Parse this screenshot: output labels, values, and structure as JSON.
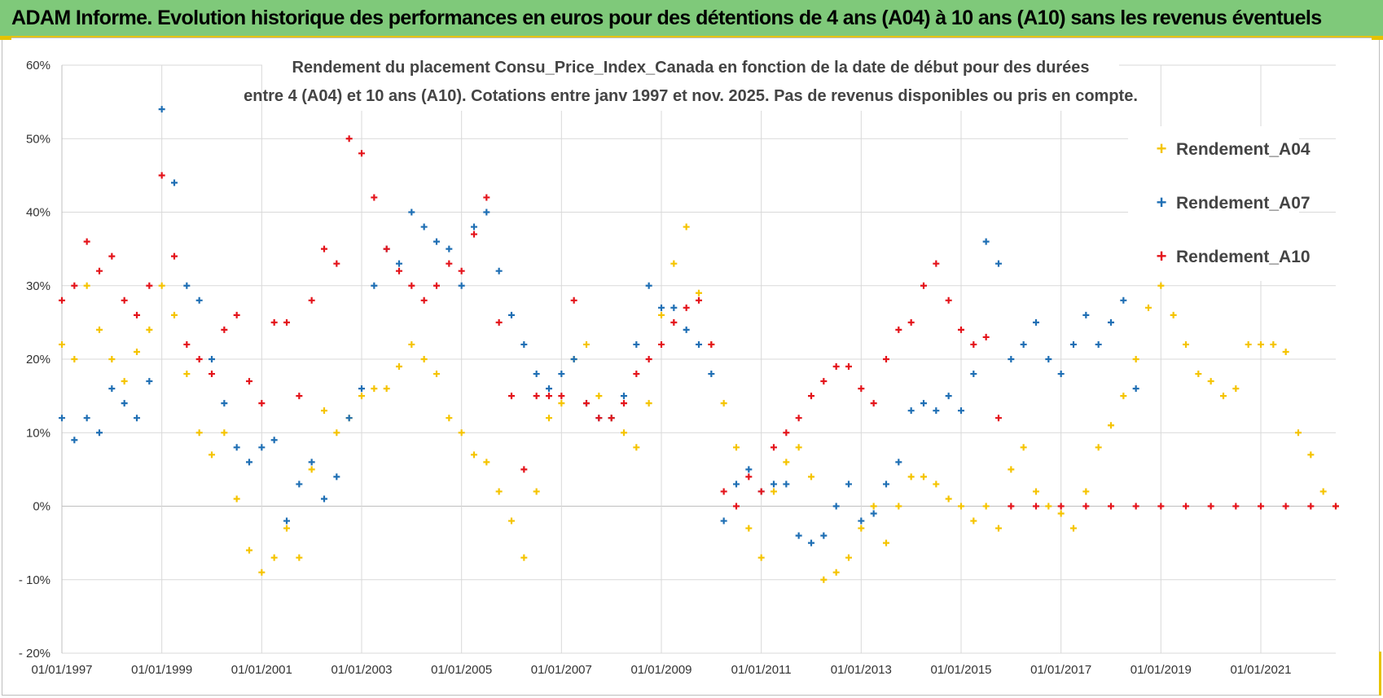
{
  "header": {
    "title": "ADAM Informe. Evolution historique des performances en euros pour des détentions de 4 ans (A04) à 10 ans (A10) sans les revenus éventuels"
  },
  "colors": {
    "header_bg": "#7fc97a",
    "accent": "#e6c200",
    "a04": "#f5c400",
    "a07": "#1f6fb4",
    "a10": "#e4141b"
  },
  "chart_data": {
    "type": "scatter",
    "title_lines": [
      "Rendement du placement Consu_Price_Index_Canada en fonction de la date de début pour des durées",
      "entre 4 (A04) et 10 ans (A10).  Cotations entre janv 1997 et nov. 2025. Pas de revenus disponibles ou pris en compte."
    ],
    "xlabel": "",
    "ylabel": "",
    "xlim": [
      1997.0,
      2022.5
    ],
    "ylim": [
      -20,
      60
    ],
    "y_ticks": [
      60,
      50,
      40,
      30,
      20,
      10,
      0,
      -10,
      -20
    ],
    "y_tick_labels": [
      "60%",
      "50%",
      "40%",
      "30%",
      "20%",
      "10%",
      "0%",
      "- 10%",
      "- 20%"
    ],
    "x_ticks": [
      1997,
      1999,
      2001,
      2003,
      2005,
      2007,
      2009,
      2011,
      2013,
      2015,
      2017,
      2019,
      2021
    ],
    "x_tick_labels": [
      "01/01/1997",
      "01/01/1999",
      "01/01/2001",
      "01/01/2003",
      "01/01/2005",
      "01/01/2007",
      "01/01/2009",
      "01/01/2011",
      "01/01/2013",
      "01/01/2015",
      "01/01/2017",
      "01/01/2019",
      "01/01/2021"
    ],
    "legend_position": "right",
    "series": [
      {
        "name": "Rendement_A04",
        "color": "#f5c400",
        "x": [
          1997.0,
          1997.25,
          1997.5,
          1997.75,
          1998.0,
          1998.25,
          1998.5,
          1998.75,
          1999.0,
          1999.25,
          1999.5,
          1999.75,
          2000.0,
          2000.25,
          2000.5,
          2000.75,
          2001.0,
          2001.25,
          2001.5,
          2001.75,
          2002.0,
          2002.25,
          2002.5,
          2002.75,
          2003.0,
          2003.25,
          2003.5,
          2003.75,
          2004.0,
          2004.25,
          2004.5,
          2004.75,
          2005.0,
          2005.25,
          2005.5,
          2005.75,
          2006.0,
          2006.25,
          2006.5,
          2006.75,
          2007.0,
          2007.25,
          2007.5,
          2007.75,
          2008.0,
          2008.25,
          2008.5,
          2008.75,
          2009.0,
          2009.25,
          2009.5,
          2009.75,
          2010.0,
          2010.25,
          2010.5,
          2010.75,
          2011.0,
          2011.25,
          2011.5,
          2011.75,
          2012.0,
          2012.25,
          2012.5,
          2012.75,
          2013.0,
          2013.25,
          2013.5,
          2013.75,
          2014.0,
          2014.25,
          2014.5,
          2014.75,
          2015.0,
          2015.25,
          2015.5,
          2015.75,
          2016.0,
          2016.25,
          2016.5,
          2016.75,
          2017.0,
          2017.25,
          2017.5,
          2017.75,
          2018.0,
          2018.25,
          2018.5,
          2018.75,
          2019.0,
          2019.25,
          2019.5,
          2019.75,
          2020.0,
          2020.25,
          2020.5,
          2020.75,
          2021.0,
          2021.25,
          2021.5,
          2021.75,
          2022.0,
          2022.25,
          2022.5
        ],
        "y": [
          22,
          20,
          30,
          24,
          20,
          17,
          21,
          24,
          30,
          26,
          18,
          10,
          7,
          10,
          1,
          -6,
          -9,
          -7,
          -3,
          -7,
          5,
          13,
          10,
          12,
          15,
          16,
          16,
          19,
          22,
          20,
          18,
          12,
          10,
          7,
          6,
          2,
          -2,
          -7,
          2,
          12,
          14,
          20,
          22,
          15,
          12,
          10,
          8,
          14,
          26,
          33,
          38,
          29,
          22,
          14,
          8,
          -3,
          -7,
          2,
          6,
          8,
          4,
          -10,
          -9,
          -7,
          -3,
          0,
          -5,
          0,
          4,
          4,
          3,
          1,
          0,
          -2,
          0,
          -3,
          5,
          8,
          2,
          0,
          -1,
          -3,
          2,
          8,
          11,
          15,
          20,
          27,
          30,
          26,
          22,
          18,
          17,
          15,
          16,
          22,
          22,
          22,
          21,
          10,
          7,
          2,
          0
        ]
      },
      {
        "name": "Rendement_A07",
        "color": "#1f6fb4",
        "x": [
          1997.0,
          1997.25,
          1997.5,
          1997.75,
          1998.0,
          1998.25,
          1998.5,
          1998.75,
          1999.0,
          1999.25,
          1999.5,
          1999.75,
          2000.0,
          2000.25,
          2000.5,
          2000.75,
          2001.0,
          2001.25,
          2001.5,
          2001.75,
          2002.0,
          2002.25,
          2002.5,
          2002.75,
          2003.0,
          2003.25,
          2003.5,
          2003.75,
          2004.0,
          2004.25,
          2004.5,
          2004.75,
          2005.0,
          2005.25,
          2005.5,
          2005.75,
          2006.0,
          2006.25,
          2006.5,
          2006.75,
          2007.0,
          2007.25,
          2007.5,
          2007.75,
          2008.0,
          2008.25,
          2008.5,
          2008.75,
          2009.0,
          2009.25,
          2009.5,
          2009.75,
          2010.0,
          2010.25,
          2010.5,
          2010.75,
          2011.0,
          2011.25,
          2011.5,
          2011.75,
          2012.0,
          2012.25,
          2012.5,
          2012.75,
          2013.0,
          2013.25,
          2013.5,
          2013.75,
          2014.0,
          2014.25,
          2014.5,
          2014.75,
          2015.0,
          2015.25,
          2015.5,
          2015.75,
          2016.0,
          2016.25,
          2016.5,
          2016.75,
          2017.0,
          2017.25,
          2017.5,
          2017.75,
          2018.0,
          2018.25,
          2018.5
        ],
        "y": [
          12,
          9,
          12,
          10,
          16,
          14,
          12,
          17,
          54,
          44,
          30,
          28,
          20,
          14,
          8,
          6,
          8,
          9,
          -2,
          3,
          6,
          1,
          4,
          12,
          16,
          30,
          35,
          33,
          40,
          38,
          36,
          35,
          30,
          38,
          40,
          32,
          26,
          22,
          18,
          16,
          18,
          20,
          14,
          12,
          12,
          15,
          22,
          30,
          27,
          27,
          24,
          22,
          18,
          -2,
          3,
          5,
          2,
          3,
          3,
          -4,
          -5,
          -4,
          0,
          3,
          -2,
          -1,
          3,
          6,
          13,
          14,
          13,
          15,
          13,
          18,
          36,
          33,
          20,
          22,
          25,
          20,
          18,
          22,
          26,
          22,
          25,
          28,
          16
        ]
      },
      {
        "name": "Rendement_A10",
        "color": "#e4141b",
        "x": [
          1997.0,
          1997.25,
          1997.5,
          1997.75,
          1998.0,
          1998.25,
          1998.5,
          1998.75,
          1999.0,
          1999.25,
          1999.5,
          1999.75,
          2000.0,
          2000.25,
          2000.5,
          2000.75,
          2001.0,
          2001.25,
          2001.5,
          2001.75,
          2002.0,
          2002.25,
          2002.5,
          2002.75,
          2003.0,
          2003.25,
          2003.5,
          2003.75,
          2004.0,
          2004.25,
          2004.5,
          2004.75,
          2005.0,
          2005.25,
          2005.5,
          2005.75,
          2006.0,
          2006.25,
          2006.5,
          2006.75,
          2007.0,
          2007.25,
          2007.5,
          2007.75,
          2008.0,
          2008.25,
          2008.5,
          2008.75,
          2009.0,
          2009.25,
          2009.5,
          2009.75,
          2010.0,
          2010.25,
          2010.5,
          2010.75,
          2011.0,
          2011.25,
          2011.5,
          2011.75,
          2012.0,
          2012.25,
          2012.5,
          2012.75,
          2013.0,
          2013.25,
          2013.5,
          2013.75,
          2014.0,
          2014.25,
          2014.5,
          2014.75,
          2015.0,
          2015.25,
          2015.5,
          2015.75,
          2016.0,
          2016.5,
          2017.0,
          2017.5,
          2018.0,
          2018.5,
          2019.0,
          2019.5,
          2020.0,
          2020.5,
          2021.0,
          2021.5,
          2022.0,
          2022.5
        ],
        "y": [
          28,
          30,
          36,
          32,
          34,
          28,
          26,
          30,
          45,
          34,
          22,
          20,
          18,
          24,
          26,
          17,
          14,
          25,
          25,
          15,
          28,
          35,
          33,
          50,
          48,
          42,
          35,
          32,
          30,
          28,
          30,
          33,
          32,
          37,
          42,
          25,
          15,
          5,
          15,
          15,
          15,
          28,
          14,
          12,
          12,
          14,
          18,
          20,
          22,
          25,
          27,
          28,
          22,
          2,
          0,
          4,
          2,
          8,
          10,
          12,
          15,
          17,
          19,
          19,
          16,
          14,
          20,
          24,
          25,
          30,
          33,
          28,
          24,
          22,
          23,
          12,
          0,
          0,
          0,
          0,
          0,
          0,
          0,
          0,
          0,
          0,
          0,
          0,
          0,
          0
        ]
      }
    ]
  }
}
